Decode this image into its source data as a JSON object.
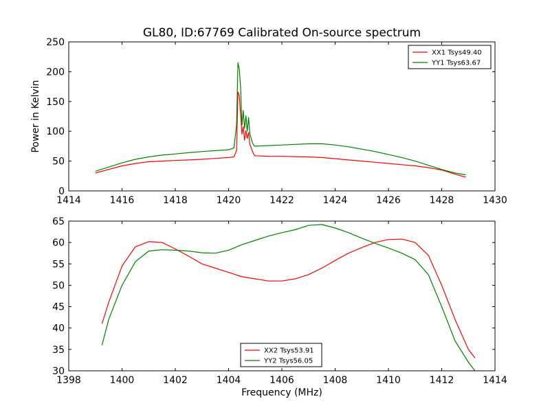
{
  "figure_title": "GL80, ID:67769 Calibrated On-source spectrum",
  "colors": {
    "red": "#ff0000",
    "green": "#008000",
    "axis": "#000000",
    "background": "#ffffff"
  },
  "chart_data": [
    {
      "type": "line",
      "title": "GL80, ID:67769 Calibrated On-source spectrum",
      "xlabel": "",
      "ylabel": "Power in Kelvin",
      "xlim": [
        1414,
        1430
      ],
      "ylim": [
        0,
        250
      ],
      "xticks": [
        1414,
        1416,
        1418,
        1420,
        1422,
        1424,
        1426,
        1428,
        1430
      ],
      "yticks": [
        0,
        50,
        100,
        150,
        200,
        250
      ],
      "grid": false,
      "legend_position": "top-right",
      "series": [
        {
          "name": "XX1 Tsys49.40",
          "color": "#ff0000",
          "x": [
            1415.0,
            1415.5,
            1416.0,
            1416.5,
            1417.0,
            1417.5,
            1418.0,
            1418.5,
            1419.0,
            1419.5,
            1420.0,
            1420.2,
            1420.3,
            1420.35,
            1420.4,
            1420.45,
            1420.5,
            1420.55,
            1420.6,
            1420.65,
            1420.7,
            1420.75,
            1420.8,
            1420.85,
            1420.9,
            1420.95,
            1421.0,
            1421.2,
            1421.5,
            1422.0,
            1422.5,
            1423.0,
            1423.5,
            1424.0,
            1424.5,
            1425.0,
            1425.5,
            1426.0,
            1426.5,
            1427.0,
            1427.5,
            1428.0,
            1428.5,
            1428.9
          ],
          "y": [
            30,
            36,
            42,
            46,
            49,
            50,
            51,
            52,
            53,
            54.5,
            56,
            57,
            68,
            166,
            160,
            130,
            95,
            108,
            85,
            101,
            88,
            98,
            78,
            72,
            66,
            61,
            59,
            58.5,
            58,
            58,
            57.5,
            57,
            56,
            54,
            52,
            50,
            48,
            46,
            44,
            42,
            39,
            35,
            28,
            23
          ]
        },
        {
          "name": "YY1 Tsys63.67",
          "color": "#008000",
          "x": [
            1415.0,
            1415.5,
            1416.0,
            1416.5,
            1417.0,
            1417.5,
            1418.0,
            1418.5,
            1419.0,
            1419.5,
            1420.0,
            1420.2,
            1420.3,
            1420.35,
            1420.4,
            1420.45,
            1420.5,
            1420.55,
            1420.6,
            1420.65,
            1420.7,
            1420.75,
            1420.8,
            1420.85,
            1420.9,
            1420.95,
            1421.0,
            1421.2,
            1421.5,
            1422.0,
            1422.5,
            1423.0,
            1423.5,
            1424.0,
            1424.5,
            1425.0,
            1425.5,
            1426.0,
            1426.5,
            1427.0,
            1427.5,
            1428.0,
            1428.5,
            1428.9
          ],
          "y": [
            33,
            40,
            47,
            53,
            57,
            60,
            62,
            64,
            66,
            67.5,
            69,
            72,
            110,
            215,
            205,
            175,
            110,
            135,
            105,
            126,
            100,
            123,
            95,
            88,
            80,
            76,
            75,
            75.5,
            76,
            77,
            78,
            79,
            79,
            77,
            74,
            70,
            66,
            61,
            56,
            50,
            43,
            36,
            30,
            27
          ]
        }
      ]
    },
    {
      "type": "line",
      "title": "",
      "xlabel": "Frequency (MHz)",
      "ylabel": "",
      "xlim": [
        1398,
        1414
      ],
      "ylim": [
        30,
        65
      ],
      "xticks": [
        1398,
        1400,
        1402,
        1404,
        1406,
        1408,
        1410,
        1412,
        1414
      ],
      "yticks": [
        30,
        35,
        40,
        45,
        50,
        55,
        60,
        65
      ],
      "grid": false,
      "legend_position": "bottom-center",
      "series": [
        {
          "name": "XX2 Tsys53.91",
          "color": "#ff0000",
          "x": [
            1399.25,
            1399.5,
            1400.0,
            1400.5,
            1401.0,
            1401.5,
            1402.0,
            1402.5,
            1403.0,
            1403.5,
            1404.0,
            1404.5,
            1405.0,
            1405.5,
            1406.0,
            1406.5,
            1407.0,
            1407.5,
            1408.0,
            1408.5,
            1409.0,
            1409.5,
            1410.0,
            1410.5,
            1411.0,
            1411.5,
            1412.0,
            1412.5,
            1413.0,
            1413.25
          ],
          "y": [
            41,
            46,
            54.5,
            59,
            60.2,
            60,
            58.5,
            56.8,
            55,
            54,
            53,
            52,
            51.5,
            51,
            51,
            51.5,
            52.5,
            54,
            55.8,
            57.5,
            58.8,
            60,
            60.7,
            60.8,
            60,
            57,
            50,
            42,
            35,
            33
          ]
        },
        {
          "name": "YY2 Tsys56.05",
          "color": "#008000",
          "x": [
            1399.25,
            1399.5,
            1400.0,
            1400.5,
            1401.0,
            1401.5,
            1402.0,
            1402.5,
            1403.0,
            1403.5,
            1404.0,
            1404.5,
            1405.0,
            1405.5,
            1406.0,
            1406.5,
            1407.0,
            1407.5,
            1408.0,
            1408.5,
            1409.0,
            1409.5,
            1410.0,
            1410.5,
            1411.0,
            1411.5,
            1412.0,
            1412.5,
            1413.0,
            1413.25
          ],
          "y": [
            36,
            42,
            50,
            55.5,
            58,
            58.3,
            58.2,
            58,
            57.6,
            57.5,
            58.2,
            59.5,
            60.5,
            61.5,
            62.3,
            63,
            64,
            64.2,
            63.4,
            62.3,
            61,
            59.8,
            58.7,
            57.5,
            56,
            52.5,
            45,
            37,
            32,
            30
          ]
        }
      ]
    }
  ]
}
